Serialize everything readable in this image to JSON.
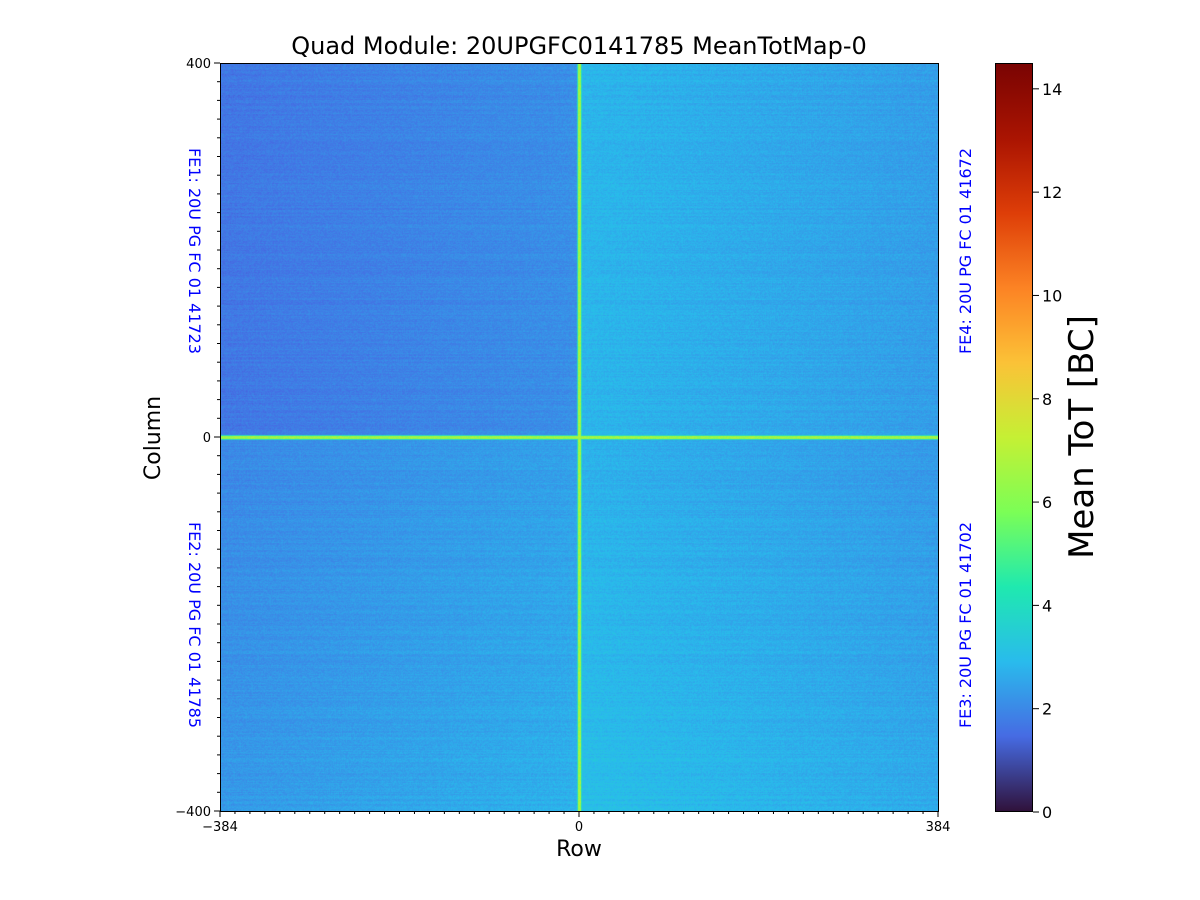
{
  "title": "Quad Module: 20UPGFC0141785 MeanTotMap-0",
  "chart_data": {
    "type": "heatmap",
    "xlabel": "Row",
    "ylabel": "Column",
    "xlim": [
      -384,
      384
    ],
    "ylim": [
      -400,
      400
    ],
    "x_ticks": [
      "−384",
      "0",
      "384"
    ],
    "y_ticks": [
      "400",
      "0",
      "−400"
    ],
    "colorbar": {
      "label": "Mean ToT [BC]",
      "range": [
        0,
        14.5
      ],
      "ticks": [
        "0",
        "2",
        "4",
        "6",
        "8",
        "10",
        "12",
        "14"
      ],
      "colormap": "turbo"
    },
    "regions": [
      {
        "label": "FE1: 20U PG FC 01 41723",
        "quadrant": "top-left",
        "mean_value": 1.9
      },
      {
        "label": "FE4: 20U PG FC 01 41672",
        "quadrant": "top-right",
        "mean_value": 2.6
      },
      {
        "label": "FE2: 20U PG FC 01 41785",
        "quadrant": "bottom-left",
        "mean_value": 2.2
      },
      {
        "label": "FE3: 20U PG FC 01 41702",
        "quadrant": "bottom-right",
        "mean_value": 2.5
      }
    ],
    "edge_lines": {
      "row": 0,
      "column": 0,
      "value": 6.5
    }
  }
}
